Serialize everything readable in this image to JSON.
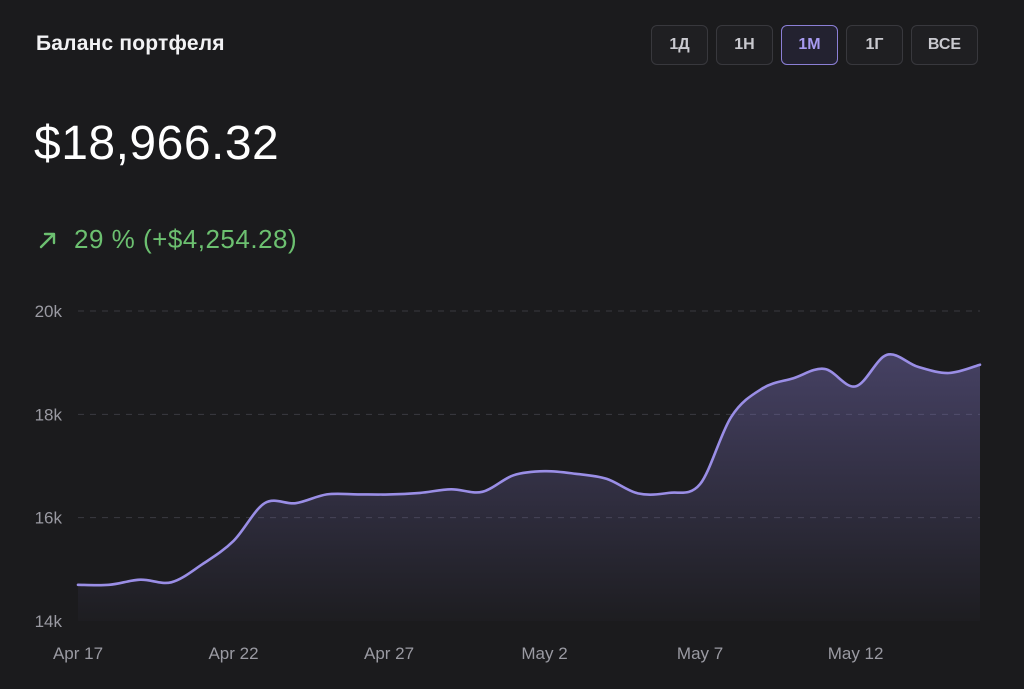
{
  "title": "Баланс портфеля",
  "range_tabs": [
    {
      "label": "1Д",
      "active": false
    },
    {
      "label": "1Н",
      "active": false
    },
    {
      "label": "1М",
      "active": true
    },
    {
      "label": "1Г",
      "active": false
    },
    {
      "label": "ВСЕ",
      "active": false
    }
  ],
  "balance": "$18,966.32",
  "change": {
    "text": "29 % (+$4,254.28)",
    "icon": "arrow-up-right-icon",
    "color": "#6cc070"
  },
  "colors": {
    "accent": "#8b7fd6",
    "positive": "#6cc070",
    "background": "#1b1b1d"
  },
  "chart_data": {
    "type": "area",
    "title": "",
    "xlabel": "",
    "ylabel": "",
    "ylim": [
      14000,
      20000
    ],
    "yticks": [
      {
        "value": 14000,
        "label": "14k"
      },
      {
        "value": 16000,
        "label": "16k"
      },
      {
        "value": 18000,
        "label": "18k"
      },
      {
        "value": 20000,
        "label": "20k"
      }
    ],
    "xticks": [
      {
        "day": 0,
        "label": "Apr 17"
      },
      {
        "day": 5,
        "label": "Apr 22"
      },
      {
        "day": 10,
        "label": "Apr 27"
      },
      {
        "day": 15,
        "label": "May 2"
      },
      {
        "day": 20,
        "label": "May 7"
      },
      {
        "day": 25,
        "label": "May 12"
      }
    ],
    "grid": true,
    "x_days": [
      0,
      1,
      2,
      3,
      4,
      5,
      6,
      7,
      8,
      9,
      10,
      11,
      12,
      13,
      14,
      15,
      16,
      17,
      18,
      19,
      20,
      21,
      22,
      23,
      24,
      25,
      26,
      27,
      28,
      29
    ],
    "values": [
      14700,
      14700,
      14800,
      14750,
      15100,
      15550,
      16280,
      16280,
      16450,
      16450,
      16450,
      16480,
      16550,
      16500,
      16820,
      16900,
      16850,
      16750,
      16470,
      16480,
      16650,
      17950,
      18500,
      18700,
      18880,
      18540,
      19150,
      18920,
      18800,
      18960
    ]
  }
}
